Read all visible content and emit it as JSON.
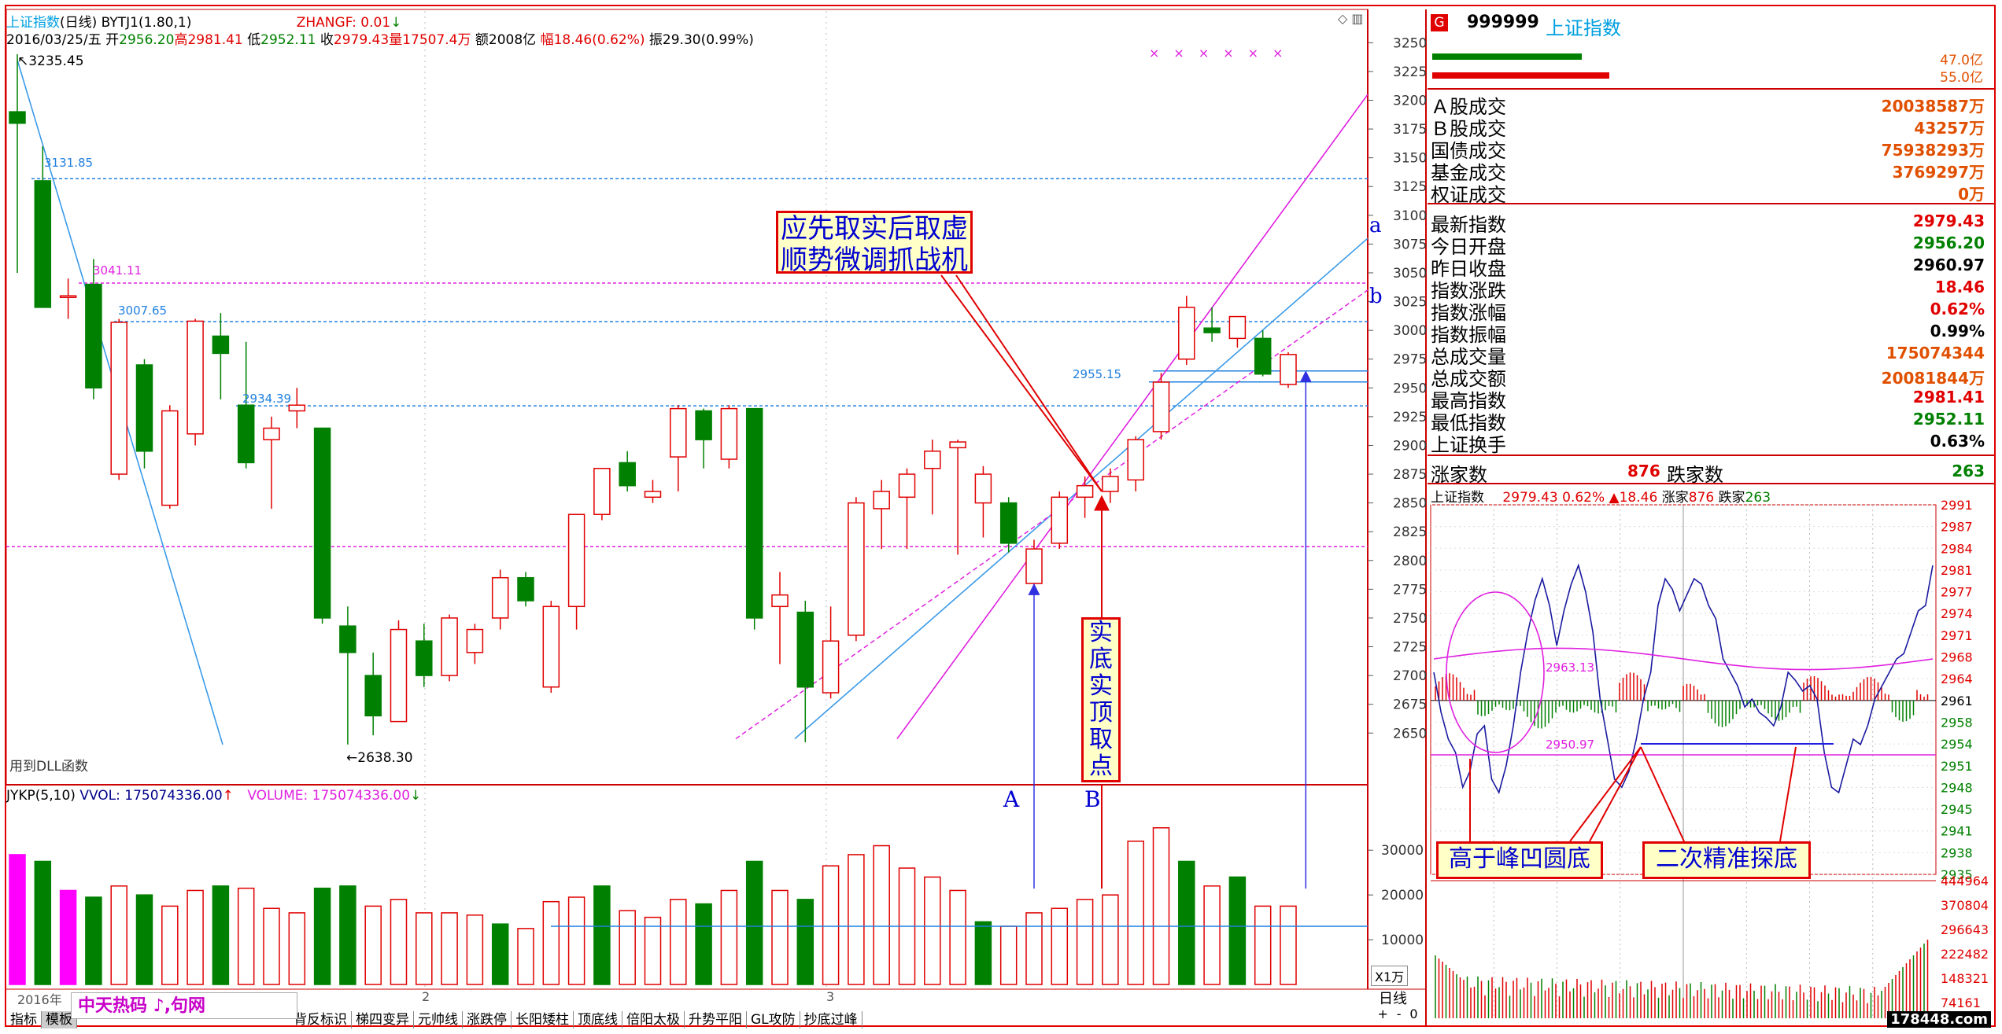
{
  "header": {
    "title": "上证指数",
    "period": "(日线)",
    "indicator": "BYTJ1(1.80,1)",
    "zhangf": "ZHANGF: 0.01",
    "date": "2016/03/25/五",
    "open_label": "开",
    "open": "2956.20",
    "high_label": "高",
    "high": "2981.41",
    "low_label": "低",
    "low": "2952.11",
    "close_label": "收",
    "close": "2979.43",
    "vol_label": "量",
    "vol": "17507.4万",
    "amt_label": "额",
    "amt": "2008亿",
    "chg_label": "幅",
    "chg": "18.46(0.62%)",
    "amp_label": "振",
    "amp": "29.30(0.99%)"
  },
  "price_labels": {
    "high_mark": "3235.45",
    "low_mark": "2638.30",
    "l3131": "3131.85",
    "l3041": "3041.11",
    "l3007": "3007.65",
    "l2934": "2934.39",
    "l2955": "2955.15",
    "dll": "用到DLL函数",
    "line_a": "a",
    "line_b": "b",
    "pt_a": "A",
    "pt_b": "B"
  },
  "volume_header": {
    "name": "JYKP(5,10)",
    "vol": "VVOL: 175074336.00",
    "volume": "VOLUME: 175074336.00"
  },
  "vol_unit": "X1万",
  "bottom": {
    "year": "2016年",
    "m2": "2",
    "m3": "3",
    "period_btn": "日线",
    "plus": "+",
    "minus": "-",
    "zero": "0",
    "watermark": "中天热码 ♪,句网"
  },
  "tabs": [
    "指标",
    "模板",
    "",
    "",
    "",
    "",
    "",
    "",
    "",
    "背反标识",
    "梯四变异",
    "元帅线",
    "涨跌停",
    "长阳矮柱",
    "顶底线",
    "倍阳太极",
    "升势平阳",
    "GL攻防",
    "抄底过峰"
  ],
  "annotations": {
    "top_box": [
      "应先取实后取虚",
      "顺势微调抓战机"
    ],
    "mid_box": [
      "实",
      "底",
      "实",
      "顶",
      "取",
      "点"
    ],
    "rb1": "高于峰凹圆底",
    "rb2": "二次精准探底"
  },
  "right_panel": {
    "badge": "G",
    "code": "999999",
    "name": "上证指数",
    "bar1_val": "47.0亿",
    "bar2_val": "55.0亿",
    "rows1": [
      {
        "label": "Ａ股成交",
        "value": "20038587万"
      },
      {
        "label": "Ｂ股成交",
        "value": "43257万"
      },
      {
        "label": "国债成交",
        "value": "75938293万"
      },
      {
        "label": "基金成交",
        "value": "3769297万"
      },
      {
        "label": "权证成交",
        "value": "0万"
      }
    ],
    "rows2": [
      {
        "label": "最新指数",
        "value": "2979.43",
        "color": "#e00000"
      },
      {
        "label": "今日开盘",
        "value": "2956.20",
        "color": "#008000"
      },
      {
        "label": "昨日收盘",
        "value": "2960.97",
        "color": "#000"
      },
      {
        "label": "指数涨跌",
        "value": "18.46",
        "color": "#e00000"
      },
      {
        "label": "指数涨幅",
        "value": "0.62%",
        "color": "#e00000"
      },
      {
        "label": "指数振幅",
        "value": "0.99%",
        "color": "#000"
      },
      {
        "label": "总成交量",
        "value": "175074344",
        "color": "#e05000"
      },
      {
        "label": "总成交额",
        "value": "20081844万",
        "color": "#e05000"
      },
      {
        "label": "最高指数",
        "value": "2981.41",
        "color": "#e00000"
      },
      {
        "label": "最低指数",
        "value": "2952.11",
        "color": "#008000"
      },
      {
        "label": "上证换手",
        "value": "0.63%",
        "color": "#000"
      }
    ],
    "up_label": "涨家数",
    "up_count": "876",
    "down_label": "跌家数",
    "down_count": "263",
    "mini_header": {
      "name": "上证指数",
      "price": "2979.43",
      "pct": "0.62%",
      "chg": "▲18.46",
      "up_label": "涨家",
      "up": "876",
      "down_label": "跌家",
      "down": "263"
    },
    "mini_ref1": "2963.13",
    "mini_ref2": "2950.97",
    "mini_price_ticks": [
      "2991",
      "2987",
      "2984",
      "2981",
      "2977",
      "2974",
      "2971",
      "2968",
      "2964",
      "2961",
      "2958",
      "2954",
      "2951",
      "2948",
      "2945",
      "2941",
      "2938",
      "2935"
    ],
    "mini_vol_ticks": [
      "444964",
      "370804",
      "296643",
      "222482",
      "148321",
      "74161"
    ],
    "watermark2": "178448.com"
  },
  "chart_data": {
    "type": "candlestick",
    "yaxis_ticks": [
      3250,
      3225,
      3200,
      3175,
      3150,
      3125,
      3100,
      3075,
      3050,
      3025,
      3000,
      2975,
      2950,
      2925,
      2900,
      2875,
      2850,
      2825,
      2800,
      2775,
      2750,
      2725,
      2700,
      2675,
      2650
    ],
    "ylim": [
      2616,
      3268
    ],
    "vol_ticks": [
      30000,
      20000,
      10000
    ],
    "candles": [
      {
        "o": 3190,
        "h": 3240,
        "l": 3050,
        "c": 3180
      },
      {
        "o": 3130,
        "h": 3160,
        "l": 3020,
        "c": 3020
      },
      {
        "o": 3030,
        "h": 3045,
        "l": 3010,
        "c": 3030
      },
      {
        "o": 3040,
        "h": 3062,
        "l": 2940,
        "c": 2950
      },
      {
        "o": 2875,
        "h": 3010,
        "l": 2870,
        "c": 3007
      },
      {
        "o": 2970,
        "h": 2975,
        "l": 2880,
        "c": 2895
      },
      {
        "o": 2848,
        "h": 2935,
        "l": 2845,
        "c": 2930
      },
      {
        "o": 2910,
        "h": 3010,
        "l": 2900,
        "c": 3008
      },
      {
        "o": 2995,
        "h": 3015,
        "l": 2940,
        "c": 2980
      },
      {
        "o": 2935,
        "h": 2990,
        "l": 2880,
        "c": 2885
      },
      {
        "o": 2905,
        "h": 2925,
        "l": 2845,
        "c": 2915
      },
      {
        "o": 2930,
        "h": 2950,
        "l": 2915,
        "c": 2935
      },
      {
        "o": 2915,
        "h": 2915,
        "l": 2745,
        "c": 2750
      },
      {
        "o": 2743,
        "h": 2760,
        "l": 2640,
        "c": 2720
      },
      {
        "o": 2700,
        "h": 2720,
        "l": 2648,
        "c": 2665
      },
      {
        "o": 2660,
        "h": 2748,
        "l": 2660,
        "c": 2740
      },
      {
        "o": 2730,
        "h": 2745,
        "l": 2690,
        "c": 2700
      },
      {
        "o": 2700,
        "h": 2753,
        "l": 2695,
        "c": 2750
      },
      {
        "o": 2720,
        "h": 2745,
        "l": 2710,
        "c": 2740
      },
      {
        "o": 2750,
        "h": 2792,
        "l": 2740,
        "c": 2785
      },
      {
        "o": 2785,
        "h": 2790,
        "l": 2760,
        "c": 2765
      },
      {
        "o": 2690,
        "h": 2765,
        "l": 2685,
        "c": 2760
      },
      {
        "o": 2760,
        "h": 2838,
        "l": 2740,
        "c": 2840
      },
      {
        "o": 2840,
        "h": 2880,
        "l": 2835,
        "c": 2880
      },
      {
        "o": 2885,
        "h": 2895,
        "l": 2860,
        "c": 2865
      },
      {
        "o": 2855,
        "h": 2870,
        "l": 2850,
        "c": 2860
      },
      {
        "o": 2890,
        "h": 2935,
        "l": 2860,
        "c": 2932
      },
      {
        "o": 2930,
        "h": 2932,
        "l": 2880,
        "c": 2905
      },
      {
        "o": 2888,
        "h": 2935,
        "l": 2880,
        "c": 2932
      },
      {
        "o": 2932,
        "h": 2932,
        "l": 2740,
        "c": 2750
      },
      {
        "o": 2760,
        "h": 2790,
        "l": 2710,
        "c": 2770
      },
      {
        "o": 2755,
        "h": 2765,
        "l": 2642,
        "c": 2690
      },
      {
        "o": 2685,
        "h": 2760,
        "l": 2680,
        "c": 2730
      },
      {
        "o": 2735,
        "h": 2855,
        "l": 2730,
        "c": 2850
      },
      {
        "o": 2845,
        "h": 2870,
        "l": 2810,
        "c": 2860
      },
      {
        "o": 2855,
        "h": 2880,
        "l": 2810,
        "c": 2875
      },
      {
        "o": 2880,
        "h": 2905,
        "l": 2840,
        "c": 2895
      },
      {
        "o": 2898,
        "h": 2905,
        "l": 2805,
        "c": 2903
      },
      {
        "o": 2850,
        "h": 2882,
        "l": 2820,
        "c": 2875
      },
      {
        "o": 2850,
        "h": 2855,
        "l": 2807,
        "c": 2815
      },
      {
        "o": 2780,
        "h": 2818,
        "l": 2775,
        "c": 2810
      },
      {
        "o": 2815,
        "h": 2860,
        "l": 2810,
        "c": 2855
      },
      {
        "o": 2855,
        "h": 2873,
        "l": 2837,
        "c": 2865
      },
      {
        "o": 2860,
        "h": 2880,
        "l": 2850,
        "c": 2873
      },
      {
        "o": 2870,
        "h": 2908,
        "l": 2860,
        "c": 2905
      },
      {
        "o": 2912,
        "h": 2963,
        "l": 2905,
        "c": 2955
      },
      {
        "o": 2975,
        "h": 3030,
        "l": 2970,
        "c": 3020
      },
      {
        "o": 3002,
        "h": 3020,
        "l": 2990,
        "c": 2998
      },
      {
        "o": 2993,
        "h": 3012,
        "l": 2985,
        "c": 3012
      },
      {
        "o": 2993,
        "h": 3000,
        "l": 2960,
        "c": 2962
      },
      {
        "o": 2953,
        "h": 2981,
        "l": 2950,
        "c": 2979
      }
    ],
    "volumes": [
      29000,
      27500,
      21000,
      19500,
      22000,
      20000,
      17500,
      21000,
      22000,
      21500,
      17000,
      16000,
      21500,
      22000,
      17500,
      19000,
      16000,
      16000,
      15500,
      13500,
      12500,
      18500,
      19500,
      22000,
      16500,
      15000,
      19000,
      18000,
      21000,
      27500,
      21000,
      19000,
      26500,
      29000,
      31000,
      26000,
      24000,
      21000,
      14000,
      13000,
      16000,
      17000,
      19000,
      20000,
      32000,
      35000,
      27500,
      22000,
      24000,
      17500,
      17500
    ],
    "vol_red": [
      true,
      false,
      true,
      false,
      true,
      false,
      true,
      true,
      false,
      true,
      true,
      true,
      false,
      false,
      true,
      true,
      true,
      true,
      true,
      false,
      true,
      true,
      true,
      false,
      true,
      true,
      true,
      false,
      true,
      false,
      true,
      false,
      true,
      true,
      true,
      true,
      true,
      true,
      false,
      true,
      true,
      true,
      true,
      true,
      true,
      true,
      false,
      true,
      false,
      true,
      true
    ],
    "reference_lines": [
      3131.85,
      3041.11,
      3007.65,
      2934.39,
      2955.15,
      2812
    ]
  }
}
